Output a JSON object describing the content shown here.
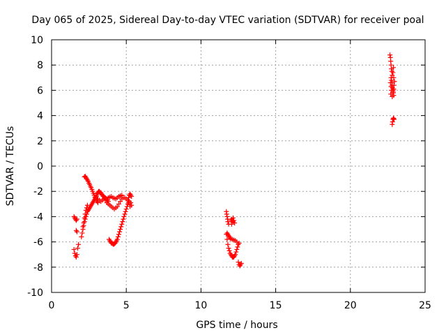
{
  "chart_data": {
    "type": "scatter",
    "title": "Day 065 of 2025, Sidereal Day-to-day VTEC variation (SDTVAR) for receiver poal",
    "xlabel": "GPS time / hours",
    "ylabel": "SDTVAR / TECUs",
    "xlim": [
      0,
      25
    ],
    "ylim": [
      -10,
      10
    ],
    "xticks": [
      0,
      5,
      10,
      15,
      20,
      25
    ],
    "yticks": [
      -10,
      -8,
      -6,
      -4,
      -2,
      0,
      2,
      4,
      6,
      8,
      10
    ],
    "xtick_labels": [
      "0",
      "5",
      "10",
      "15",
      "20",
      "25"
    ],
    "ytick_labels": [
      "-10",
      "-8",
      "-6",
      "-4",
      "-2",
      "0",
      "2",
      "4",
      "6",
      "8",
      "10"
    ],
    "grid": true,
    "marker": "+",
    "color": "#ff0000",
    "series": [
      {
        "name": "SDTVAR",
        "points": [
          [
            1.5,
            -4.0
          ],
          [
            1.55,
            -4.1
          ],
          [
            1.6,
            -4.2
          ],
          [
            1.65,
            -4.3
          ],
          [
            1.7,
            -4.2
          ],
          [
            1.5,
            -6.6
          ],
          [
            1.55,
            -6.9
          ],
          [
            1.6,
            -7.1
          ],
          [
            1.65,
            -7.2
          ],
          [
            1.7,
            -7.0
          ],
          [
            1.75,
            -6.5
          ],
          [
            1.8,
            -6.2
          ],
          [
            1.65,
            -5.1
          ],
          [
            1.7,
            -5.2
          ],
          [
            2.0,
            -5.6
          ],
          [
            2.05,
            -5.3
          ],
          [
            2.1,
            -5.0
          ],
          [
            2.15,
            -4.7
          ],
          [
            2.2,
            -4.4
          ],
          [
            2.25,
            -4.2
          ],
          [
            2.3,
            -4.0
          ],
          [
            2.35,
            -3.8
          ],
          [
            2.4,
            -3.6
          ],
          [
            2.45,
            -3.5
          ],
          [
            2.5,
            -3.4
          ],
          [
            2.55,
            -3.3
          ],
          [
            2.6,
            -3.2
          ],
          [
            2.65,
            -3.1
          ],
          [
            2.7,
            -3.0
          ],
          [
            2.75,
            -2.9
          ],
          [
            2.8,
            -2.8
          ],
          [
            2.85,
            -2.7
          ],
          [
            2.9,
            -2.6
          ],
          [
            2.95,
            -2.5
          ],
          [
            3.0,
            -2.4
          ],
          [
            2.2,
            -0.85
          ],
          [
            2.25,
            -0.8
          ],
          [
            2.3,
            -0.9
          ],
          [
            2.35,
            -1.0
          ],
          [
            2.4,
            -1.1
          ],
          [
            2.45,
            -1.2
          ],
          [
            2.5,
            -1.35
          ],
          [
            2.55,
            -1.45
          ],
          [
            2.6,
            -1.6
          ],
          [
            2.65,
            -1.7
          ],
          [
            2.7,
            -1.85
          ],
          [
            2.75,
            -2.0
          ],
          [
            2.8,
            -2.15
          ],
          [
            2.85,
            -2.3
          ],
          [
            2.9,
            -2.45
          ],
          [
            2.95,
            -2.55
          ],
          [
            3.0,
            -2.7
          ],
          [
            3.05,
            -2.8
          ],
          [
            3.1,
            -2.9
          ],
          [
            2.1,
            -4.8
          ],
          [
            2.15,
            -4.5
          ],
          [
            2.2,
            -4.1
          ],
          [
            2.25,
            -3.8
          ],
          [
            2.3,
            -3.5
          ],
          [
            2.35,
            -3.3
          ],
          [
            2.4,
            -3.1
          ],
          [
            3.0,
            -2.3
          ],
          [
            3.05,
            -2.2
          ],
          [
            3.1,
            -2.1
          ],
          [
            3.15,
            -2.0
          ],
          [
            3.2,
            -2.0
          ],
          [
            3.25,
            -2.1
          ],
          [
            3.3,
            -2.1
          ],
          [
            3.35,
            -2.2
          ],
          [
            3.4,
            -2.3
          ],
          [
            3.45,
            -2.4
          ],
          [
            3.5,
            -2.4
          ],
          [
            3.55,
            -2.5
          ],
          [
            3.6,
            -2.5
          ],
          [
            3.65,
            -2.6
          ],
          [
            3.7,
            -2.6
          ],
          [
            3.75,
            -2.7
          ],
          [
            3.8,
            -2.8
          ],
          [
            3.1,
            -2.6
          ],
          [
            3.2,
            -2.7
          ],
          [
            3.3,
            -2.8
          ],
          [
            3.4,
            -2.7
          ],
          [
            3.5,
            -2.6
          ],
          [
            3.6,
            -2.7
          ],
          [
            3.7,
            -2.9
          ],
          [
            3.8,
            -3.0
          ],
          [
            3.9,
            -3.1
          ],
          [
            4.0,
            -3.2
          ],
          [
            4.1,
            -3.3
          ],
          [
            4.2,
            -3.4
          ],
          [
            4.3,
            -3.3
          ],
          [
            4.4,
            -3.2
          ],
          [
            4.5,
            -3.0
          ],
          [
            4.6,
            -2.8
          ],
          [
            4.7,
            -2.6
          ],
          [
            4.8,
            -2.5
          ],
          [
            4.9,
            -2.5
          ],
          [
            5.0,
            -2.6
          ],
          [
            3.8,
            -2.5
          ],
          [
            3.9,
            -2.45
          ],
          [
            4.0,
            -2.4
          ],
          [
            4.1,
            -2.5
          ],
          [
            4.2,
            -2.55
          ],
          [
            4.3,
            -2.6
          ],
          [
            4.4,
            -2.5
          ],
          [
            4.5,
            -2.4
          ],
          [
            4.6,
            -2.35
          ],
          [
            4.7,
            -2.3
          ],
          [
            3.85,
            -5.8
          ],
          [
            3.9,
            -5.9
          ],
          [
            3.95,
            -6.0
          ],
          [
            4.0,
            -6.1
          ],
          [
            4.05,
            -6.1
          ],
          [
            4.1,
            -6.15
          ],
          [
            4.15,
            -6.2
          ],
          [
            4.2,
            -6.15
          ],
          [
            4.25,
            -6.1
          ],
          [
            4.3,
            -6.0
          ],
          [
            4.35,
            -5.9
          ],
          [
            4.4,
            -5.8
          ],
          [
            4.45,
            -5.6
          ],
          [
            4.5,
            -5.4
          ],
          [
            4.55,
            -5.2
          ],
          [
            4.6,
            -5.0
          ],
          [
            4.65,
            -4.8
          ],
          [
            4.7,
            -4.6
          ],
          [
            4.75,
            -4.4
          ],
          [
            4.8,
            -4.2
          ],
          [
            4.85,
            -4.0
          ],
          [
            4.9,
            -3.8
          ],
          [
            4.95,
            -3.6
          ],
          [
            5.0,
            -3.4
          ],
          [
            5.05,
            -3.2
          ],
          [
            5.1,
            -3.0
          ],
          [
            5.15,
            -2.9
          ],
          [
            5.2,
            -2.8
          ],
          [
            5.1,
            -2.7
          ],
          [
            5.15,
            -2.5
          ],
          [
            5.2,
            -2.3
          ],
          [
            5.25,
            -2.2
          ],
          [
            5.3,
            -2.3
          ],
          [
            5.35,
            -2.4
          ],
          [
            5.3,
            -2.9
          ],
          [
            5.35,
            -3.1
          ],
          [
            5.25,
            -3.2
          ],
          [
            5.2,
            -2.9
          ],
          [
            11.7,
            -3.6
          ],
          [
            11.72,
            -3.8
          ],
          [
            11.75,
            -4.0
          ],
          [
            11.78,
            -4.2
          ],
          [
            11.8,
            -4.4
          ],
          [
            11.85,
            -4.6
          ],
          [
            11.7,
            -5.4
          ],
          [
            11.75,
            -5.8
          ],
          [
            11.8,
            -6.2
          ],
          [
            11.85,
            -6.5
          ],
          [
            11.9,
            -6.7
          ],
          [
            11.95,
            -6.9
          ],
          [
            12.0,
            -7.0
          ],
          [
            12.05,
            -7.1
          ],
          [
            12.1,
            -7.2
          ],
          [
            12.15,
            -7.2
          ],
          [
            12.2,
            -7.2
          ],
          [
            12.25,
            -7.1
          ],
          [
            12.3,
            -7.0
          ],
          [
            12.35,
            -6.8
          ],
          [
            12.4,
            -6.6
          ],
          [
            12.45,
            -6.4
          ],
          [
            12.5,
            -6.2
          ],
          [
            12.55,
            -6.1
          ],
          [
            11.75,
            -5.3
          ],
          [
            11.8,
            -5.4
          ],
          [
            11.85,
            -5.5
          ],
          [
            11.9,
            -5.6
          ],
          [
            11.95,
            -5.7
          ],
          [
            12.0,
            -5.75
          ],
          [
            12.1,
            -5.8
          ],
          [
            12.2,
            -5.85
          ],
          [
            12.3,
            -5.9
          ],
          [
            12.4,
            -6.0
          ],
          [
            12.0,
            -4.3
          ],
          [
            12.05,
            -4.2
          ],
          [
            12.1,
            -4.3
          ],
          [
            12.15,
            -4.4
          ],
          [
            12.2,
            -4.3
          ],
          [
            12.25,
            -4.5
          ],
          [
            12.05,
            -4.6
          ],
          [
            12.15,
            -4.1
          ],
          [
            12.5,
            -7.6
          ],
          [
            12.55,
            -7.8
          ],
          [
            12.6,
            -7.9
          ],
          [
            12.65,
            -7.8
          ],
          [
            12.7,
            -7.7
          ],
          [
            22.65,
            8.8
          ],
          [
            22.68,
            8.6
          ],
          [
            22.7,
            8.3
          ],
          [
            22.72,
            8.0
          ],
          [
            22.75,
            7.7
          ],
          [
            22.78,
            7.5
          ],
          [
            22.8,
            7.2
          ],
          [
            22.72,
            7.0
          ],
          [
            22.75,
            6.8
          ],
          [
            22.78,
            6.6
          ],
          [
            22.8,
            6.4
          ],
          [
            22.82,
            6.2
          ],
          [
            22.85,
            6.0
          ],
          [
            22.88,
            5.8
          ],
          [
            22.9,
            5.6
          ],
          [
            22.75,
            6.0
          ],
          [
            22.7,
            5.7
          ],
          [
            22.72,
            6.3
          ],
          [
            22.68,
            6.6
          ],
          [
            22.8,
            5.5
          ],
          [
            22.85,
            5.9
          ],
          [
            22.9,
            6.1
          ],
          [
            22.92,
            6.4
          ],
          [
            22.95,
            6.7
          ],
          [
            22.9,
            7.0
          ],
          [
            22.85,
            7.4
          ],
          [
            22.88,
            7.8
          ],
          [
            22.8,
            3.3
          ],
          [
            22.82,
            3.5
          ],
          [
            22.85,
            3.7
          ],
          [
            22.88,
            3.8
          ],
          [
            22.9,
            3.75
          ],
          [
            22.92,
            3.7
          ]
        ]
      }
    ]
  }
}
